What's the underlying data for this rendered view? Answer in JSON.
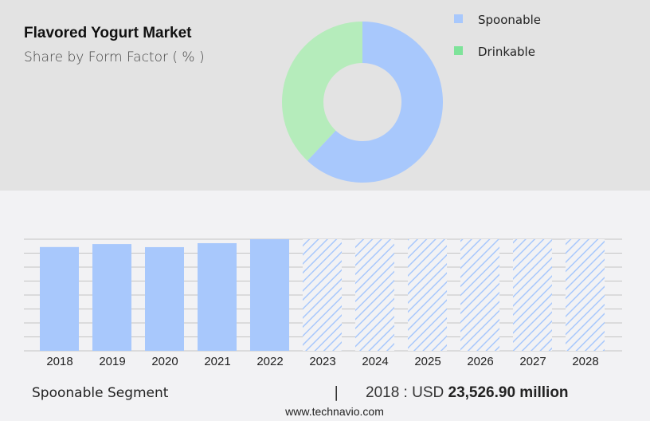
{
  "header": {
    "title": "Flavored Yogurt Market",
    "subtitle": "Share by Form Factor ( % )"
  },
  "legend": [
    {
      "label": "Spoonable",
      "color": "#a8c8fc"
    },
    {
      "label": "Drinkable",
      "color": "#7ee39a"
    }
  ],
  "footer": {
    "segment": "Spoonable Segment",
    "separator": "|",
    "year_label": "2018 : USD ",
    "value": "23,526.90 million",
    "source": "www.technavio.com"
  },
  "colors": {
    "spoonable": "#a8c8fc",
    "drinkable_donut": "#b5ecbb",
    "drinkable_legend": "#7ee39a",
    "gridline": "#c4c4c4",
    "top_background": "#e3e3e3",
    "bottom_background": "#f2f2f4"
  },
  "chart_data": [
    {
      "type": "pie",
      "title": "Flavored Yogurt Market",
      "subtitle": "Share by Form Factor ( % )",
      "donut": true,
      "labels": [
        "Spoonable",
        "Drinkable"
      ],
      "values": [
        62,
        38
      ],
      "legend_position": "right"
    },
    {
      "type": "bar",
      "title": "Spoonable Segment",
      "categories": [
        "2018",
        "2019",
        "2020",
        "2021",
        "2022",
        "2023",
        "2024",
        "2025",
        "2026",
        "2027",
        "2028"
      ],
      "series": [
        {
          "name": "Spoonable (USD million)",
          "values": [
            23526.9,
            24200,
            23500,
            24400,
            25300,
            null,
            null,
            null,
            null,
            null,
            null
          ]
        }
      ],
      "forecast_years": [
        "2023",
        "2024",
        "2025",
        "2026",
        "2027",
        "2028"
      ],
      "forecast_style": "hatched, full height placeholder",
      "annotation": "2018 : USD 23,526.90 million",
      "xlabel": "",
      "ylabel": "",
      "grid": true,
      "gridlines": 9
    }
  ]
}
